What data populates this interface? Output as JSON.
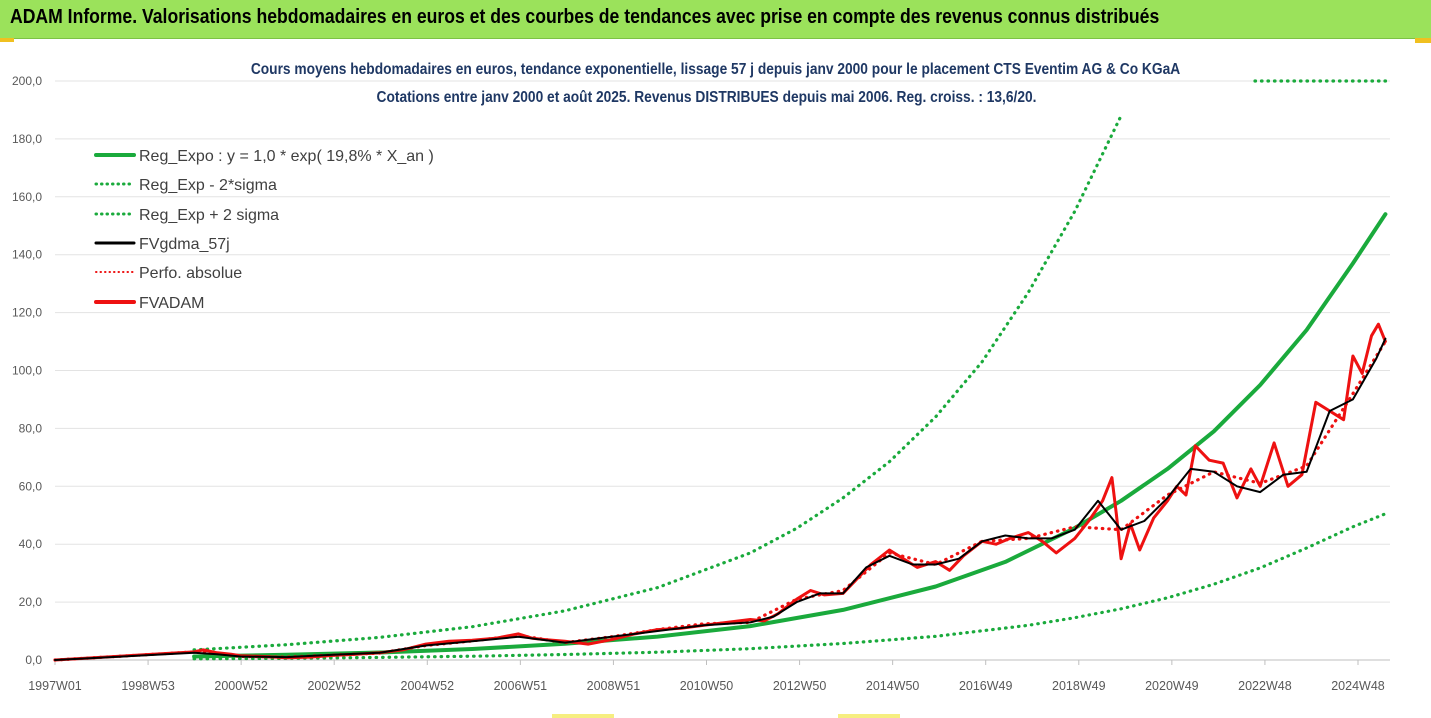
{
  "banner": {
    "title": "ADAM Informe. Valorisations hebdomadaires en euros et des courbes de tendances avec prise en compte des revenus connus distribués"
  },
  "colors": {
    "banner_bg": "#9be25b",
    "green": "#1aaa3c",
    "red": "#ee1111",
    "black": "#000000",
    "subtitle": "#1f3864"
  },
  "chart_data": {
    "type": "line",
    "title": "Cours moyens hebdomadaires en euros, tendance exponentielle, lissage 57 j depuis janv 2000 pour le placement CTS Eventim AG & Co KGaA",
    "subtitle": "Cotations entre janv 2000 et août 2025.  Revenus DISTRIBUES depuis mai 2006. Reg. croiss. : 13,6/20.",
    "xlabel": "",
    "ylabel": "",
    "xlim": [
      1997.0,
      2025.8
    ],
    "ylim": [
      0,
      200
    ],
    "y_ticks": [
      "0,0",
      "20,0",
      "40,0",
      "60,0",
      "80,0",
      "100,0",
      "120,0",
      "140,0",
      "160,0",
      "180,0",
      "200,0"
    ],
    "x_ticks": [
      "1997W01",
      "1998W53",
      "2000W52",
      "2002W52",
      "2004W52",
      "2006W51",
      "2008W51",
      "2010W50",
      "2012W50",
      "2014W50",
      "2016W49",
      "2018W49",
      "2020W49",
      "2022W48",
      "2024W48"
    ],
    "grid": "horizontal",
    "legend_position": "top-left",
    "series": [
      {
        "name": "Reg_Expo : y = 1,0 * exp( 19,8% *  X_an )",
        "style": "solid",
        "color": "#1aaa3c",
        "x": [
          2000.0,
          2002.0,
          2004.0,
          2006.0,
          2008.0,
          2010.0,
          2012.0,
          2014.0,
          2016.0,
          2017.5,
          2019.0,
          2020.0,
          2021.0,
          2022.0,
          2023.0,
          2024.0,
          2025.0,
          2025.7
        ],
        "y": [
          1.2,
          1.8,
          2.6,
          3.8,
          5.6,
          8.1,
          11.7,
          17.3,
          25.4,
          33.9,
          45.6,
          55.0,
          66.0,
          79.0,
          95.0,
          114.0,
          137.0,
          154.0
        ]
      },
      {
        "name": "Reg_Exp - 2*sigma",
        "style": "dotted",
        "color": "#1aaa3c",
        "x": [
          2000.0,
          2002.0,
          2004.0,
          2006.0,
          2008.0,
          2010.0,
          2012.0,
          2014.0,
          2016.0,
          2018.0,
          2019.0,
          2020.0,
          2021.0,
          2022.0,
          2023.0,
          2024.0,
          2025.0,
          2025.7
        ],
        "y": [
          0.4,
          0.6,
          0.9,
          1.3,
          1.9,
          2.7,
          3.9,
          5.7,
          8.2,
          12.0,
          14.6,
          17.7,
          21.5,
          26.2,
          31.8,
          38.7,
          46.0,
          50.5
        ]
      },
      {
        "name": "Reg_Exp + 2 sigma",
        "style": "dotted",
        "color": "#1aaa3c",
        "x": [
          2000.0,
          2002.0,
          2004.0,
          2006.0,
          2008.0,
          2010.0,
          2012.0,
          2013.0,
          2014.0,
          2015.0,
          2016.0,
          2017.0,
          2018.0,
          2019.0,
          2020.0
        ],
        "y": [
          3.5,
          5.3,
          7.8,
          11.5,
          17.0,
          25.0,
          37.0,
          45.5,
          56.0,
          68.5,
          84.0,
          103.0,
          127.0,
          155.0,
          188.0
        ]
      },
      {
        "name": "FVgdma_57j",
        "style": "solid",
        "color": "#000000",
        "x": [
          1997.0,
          2000.0,
          2000.5,
          2001.0,
          2002.0,
          2003.0,
          2004.0,
          2005.0,
          2006.0,
          2007.0,
          2008.0,
          2009.0,
          2010.0,
          2011.0,
          2012.0,
          2012.5,
          2013.0,
          2013.5,
          2014.0,
          2014.5,
          2015.0,
          2015.5,
          2016.0,
          2016.5,
          2017.0,
          2017.5,
          2018.0,
          2018.5,
          2019.0,
          2019.5,
          2020.0,
          2020.5,
          2021.0,
          2021.5,
          2022.0,
          2022.5,
          2023.0,
          2023.5,
          2024.0,
          2024.5,
          2025.0,
          2025.5,
          2025.7
        ],
        "y": [
          0.0,
          2.5,
          2.0,
          1.2,
          1.0,
          1.8,
          2.5,
          5.0,
          6.5,
          8.0,
          6.0,
          8.0,
          10.0,
          12.0,
          13.0,
          15.0,
          20.0,
          23.0,
          23.0,
          32.0,
          36.0,
          33.0,
          33.0,
          35.0,
          41.0,
          43.0,
          42.0,
          42.0,
          45.0,
          55.0,
          45.0,
          48.0,
          56.0,
          66.0,
          65.0,
          60.0,
          58.0,
          64.0,
          65.0,
          86.0,
          90.0,
          104.0,
          111.0
        ]
      },
      {
        "name": "Perfo. absolue",
        "style": "dotted",
        "color": "#ee1111",
        "x": [
          1997.0,
          2000.0,
          2000.5,
          2001.0,
          2002.0,
          2003.0,
          2004.0,
          2005.0,
          2006.0,
          2007.0,
          2008.0,
          2009.0,
          2010.0,
          2011.0,
          2012.0,
          2013.0,
          2014.0,
          2015.0,
          2016.0,
          2017.0,
          2018.0,
          2019.0,
          2020.0,
          2021.0,
          2022.0,
          2023.0,
          2024.0,
          2025.0,
          2025.7
        ],
        "y": [
          0.0,
          2.8,
          2.2,
          1.2,
          1.0,
          1.7,
          2.4,
          5.0,
          6.6,
          8.5,
          6.0,
          8.0,
          10.5,
          12.5,
          13.0,
          21.0,
          24.0,
          37.0,
          33.0,
          41.0,
          42.0,
          46.0,
          45.0,
          57.0,
          65.0,
          61.0,
          67.0,
          92.0,
          110.0
        ]
      },
      {
        "name": "FVADAM",
        "style": "solid",
        "color": "#ee1111",
        "x": [
          1997.0,
          2000.0,
          2000.2,
          2000.5,
          2000.8,
          2001.0,
          2001.5,
          2002.0,
          2002.5,
          2003.0,
          2003.5,
          2004.0,
          2004.5,
          2005.0,
          2005.5,
          2006.0,
          2006.5,
          2007.0,
          2007.3,
          2007.6,
          2008.0,
          2008.5,
          2009.0,
          2009.5,
          2010.0,
          2010.5,
          2011.0,
          2011.5,
          2012.0,
          2012.3,
          2012.6,
          2013.0,
          2013.3,
          2013.6,
          2014.0,
          2014.3,
          2014.6,
          2015.0,
          2015.3,
          2015.6,
          2016.0,
          2016.3,
          2016.6,
          2017.0,
          2017.3,
          2017.6,
          2018.0,
          2018.3,
          2018.6,
          2019.0,
          2019.3,
          2019.6,
          2019.8,
          2019.9,
          2020.0,
          2020.2,
          2020.4,
          2020.7,
          2021.0,
          2021.2,
          2021.4,
          2021.6,
          2021.9,
          2022.2,
          2022.5,
          2022.8,
          2023.0,
          2023.3,
          2023.6,
          2023.9,
          2024.2,
          2024.5,
          2024.8,
          2025.0,
          2025.2,
          2025.4,
          2025.55,
          2025.7
        ],
        "y": [
          0.0,
          2.8,
          3.5,
          2.5,
          2.0,
          1.5,
          1.2,
          0.8,
          1.0,
          1.6,
          2.0,
          2.5,
          3.5,
          5.5,
          6.5,
          6.8,
          7.5,
          9.0,
          7.5,
          7.0,
          6.5,
          5.5,
          7.0,
          9.0,
          10.5,
          11.0,
          12.0,
          13.0,
          14.0,
          13.5,
          16.0,
          21.0,
          24.0,
          22.5,
          23.0,
          28.0,
          33.0,
          38.0,
          35.0,
          32.0,
          34.0,
          31.0,
          36.0,
          41.0,
          40.0,
          42.0,
          44.0,
          41.0,
          37.0,
          42.0,
          48.0,
          55.0,
          63.0,
          50.0,
          35.0,
          47.0,
          38.0,
          49.0,
          55.0,
          60.0,
          57.0,
          74.0,
          69.0,
          68.0,
          56.0,
          66.0,
          60.0,
          75.0,
          60.0,
          64.0,
          89.0,
          86.0,
          83.0,
          105.0,
          99.0,
          112.0,
          116.0,
          110.0
        ]
      }
    ]
  }
}
